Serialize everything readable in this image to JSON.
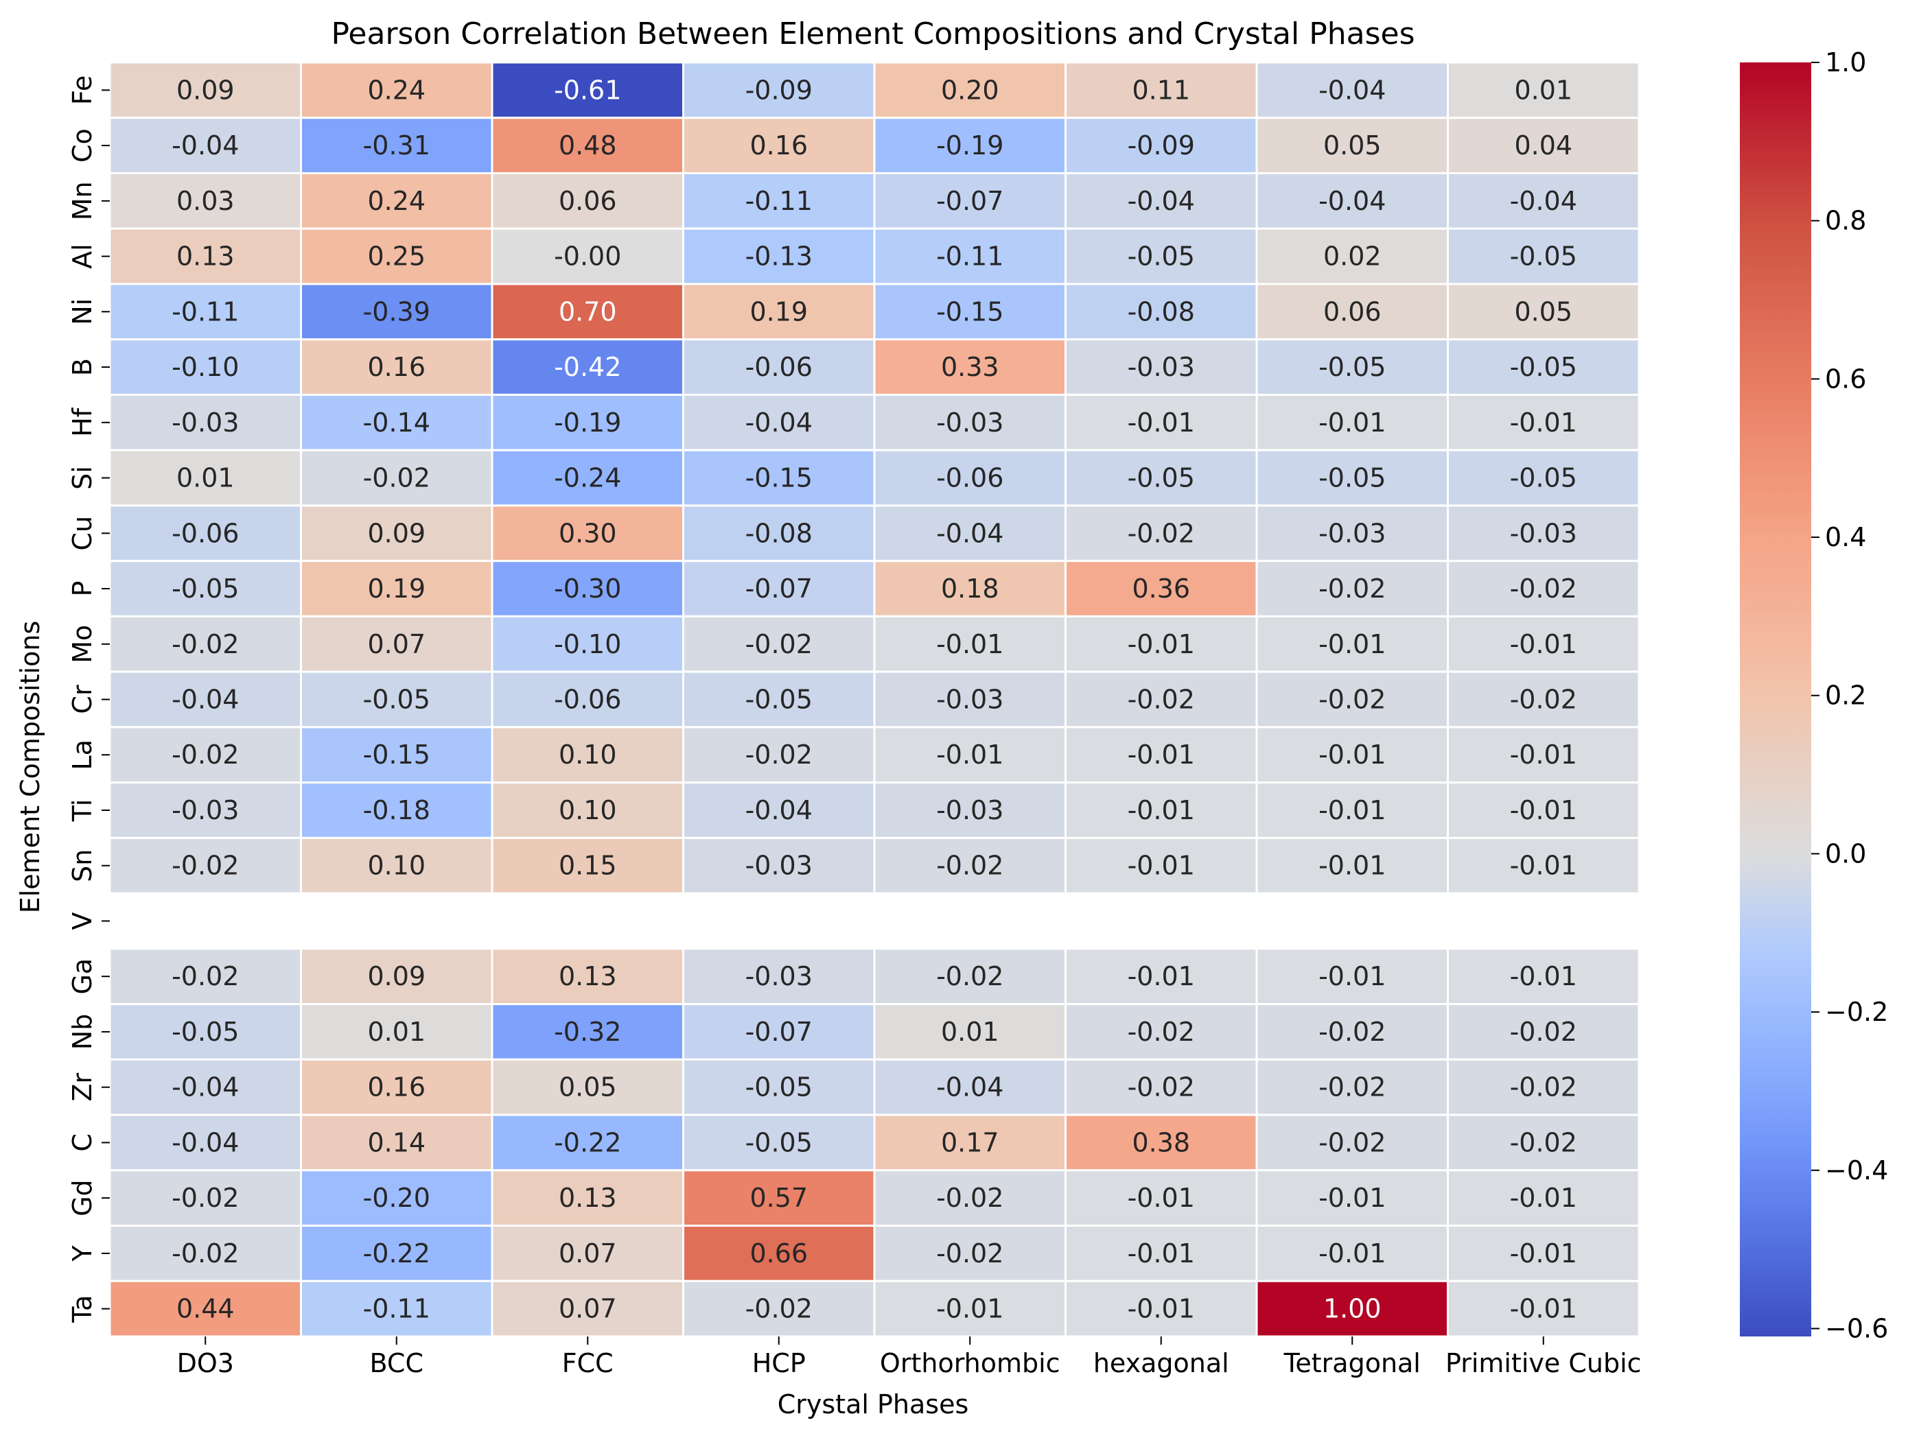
{
  "chart_data": {
    "type": "heatmap",
    "title": "Pearson Correlation Between Element Compositions and Crystal Phases",
    "xlabel": "Crystal Phases",
    "ylabel": "Element Compositions",
    "columns": [
      "DO3",
      "BCC",
      "FCC",
      "HCP",
      "Orthorhombic",
      "hexagonal",
      "Tetragonal",
      "Primitive Cubic"
    ],
    "rows": [
      "Fe",
      "Co",
      "Mn",
      "Al",
      "Ni",
      "B",
      "Hf",
      "Si",
      "Cu",
      "P",
      "Mo",
      "Cr",
      "La",
      "Ti",
      "Sn",
      "V",
      "Ga",
      "Nb",
      "Zr",
      "C",
      "Gd",
      "Y",
      "Ta"
    ],
    "values": [
      [
        "0.09",
        "0.24",
        "-0.61",
        "-0.09",
        "0.20",
        "0.11",
        "-0.04",
        "0.01"
      ],
      [
        "-0.04",
        "-0.31",
        "0.48",
        "0.16",
        "-0.19",
        "-0.09",
        "0.05",
        "0.04"
      ],
      [
        "0.03",
        "0.24",
        "0.06",
        "-0.11",
        "-0.07",
        "-0.04",
        "-0.04",
        "-0.04"
      ],
      [
        "0.13",
        "0.25",
        "-0.00",
        "-0.13",
        "-0.11",
        "-0.05",
        "0.02",
        "-0.05"
      ],
      [
        "-0.11",
        "-0.39",
        "0.70",
        "0.19",
        "-0.15",
        "-0.08",
        "0.06",
        "0.05"
      ],
      [
        "-0.10",
        "0.16",
        "-0.42",
        "-0.06",
        "0.33",
        "-0.03",
        "-0.05",
        "-0.05"
      ],
      [
        "-0.03",
        "-0.14",
        "-0.19",
        "-0.04",
        "-0.03",
        "-0.01",
        "-0.01",
        "-0.01"
      ],
      [
        "0.01",
        "-0.02",
        "-0.24",
        "-0.15",
        "-0.06",
        "-0.05",
        "-0.05",
        "-0.05"
      ],
      [
        "-0.06",
        "0.09",
        "0.30",
        "-0.08",
        "-0.04",
        "-0.02",
        "-0.03",
        "-0.03"
      ],
      [
        "-0.05",
        "0.19",
        "-0.30",
        "-0.07",
        "0.18",
        "0.36",
        "-0.02",
        "-0.02"
      ],
      [
        "-0.02",
        "0.07",
        "-0.10",
        "-0.02",
        "-0.01",
        "-0.01",
        "-0.01",
        "-0.01"
      ],
      [
        "-0.04",
        "-0.05",
        "-0.06",
        "-0.05",
        "-0.03",
        "-0.02",
        "-0.02",
        "-0.02"
      ],
      [
        "-0.02",
        "-0.15",
        "0.10",
        "-0.02",
        "-0.01",
        "-0.01",
        "-0.01",
        "-0.01"
      ],
      [
        "-0.03",
        "-0.18",
        "0.10",
        "-0.04",
        "-0.03",
        "-0.01",
        "-0.01",
        "-0.01"
      ],
      [
        "-0.02",
        "0.10",
        "0.15",
        "-0.03",
        "-0.02",
        "-0.01",
        "-0.01",
        "-0.01"
      ],
      [
        null,
        null,
        null,
        null,
        null,
        null,
        null,
        null
      ],
      [
        "-0.02",
        "0.09",
        "0.13",
        "-0.03",
        "-0.02",
        "-0.01",
        "-0.01",
        "-0.01"
      ],
      [
        "-0.05",
        "0.01",
        "-0.32",
        "-0.07",
        "0.01",
        "-0.02",
        "-0.02",
        "-0.02"
      ],
      [
        "-0.04",
        "0.16",
        "0.05",
        "-0.05",
        "-0.04",
        "-0.02",
        "-0.02",
        "-0.02"
      ],
      [
        "-0.04",
        "0.14",
        "-0.22",
        "-0.05",
        "0.17",
        "0.38",
        "-0.02",
        "-0.02"
      ],
      [
        "-0.02",
        "-0.20",
        "0.13",
        "0.57",
        "-0.02",
        "-0.01",
        "-0.01",
        "-0.01"
      ],
      [
        "-0.02",
        "-0.22",
        "0.07",
        "0.66",
        "-0.02",
        "-0.01",
        "-0.01",
        "-0.01"
      ],
      [
        "0.44",
        "-0.11",
        "0.07",
        "-0.02",
        "-0.01",
        "-0.01",
        "1.00",
        "-0.01"
      ]
    ],
    "colormap": "coolwarm",
    "vmin": -0.61,
    "vmax": 1.0,
    "colorbar": {
      "ticks": [
        1.0,
        0.8,
        0.6,
        0.4,
        0.2,
        0.0,
        -0.2,
        -0.4,
        -0.6
      ],
      "tick_labels": [
        "1.0",
        "0.8",
        "0.6",
        "0.4",
        "0.2",
        "0.0",
        "−0.2",
        "−0.4",
        "−0.6"
      ]
    }
  }
}
